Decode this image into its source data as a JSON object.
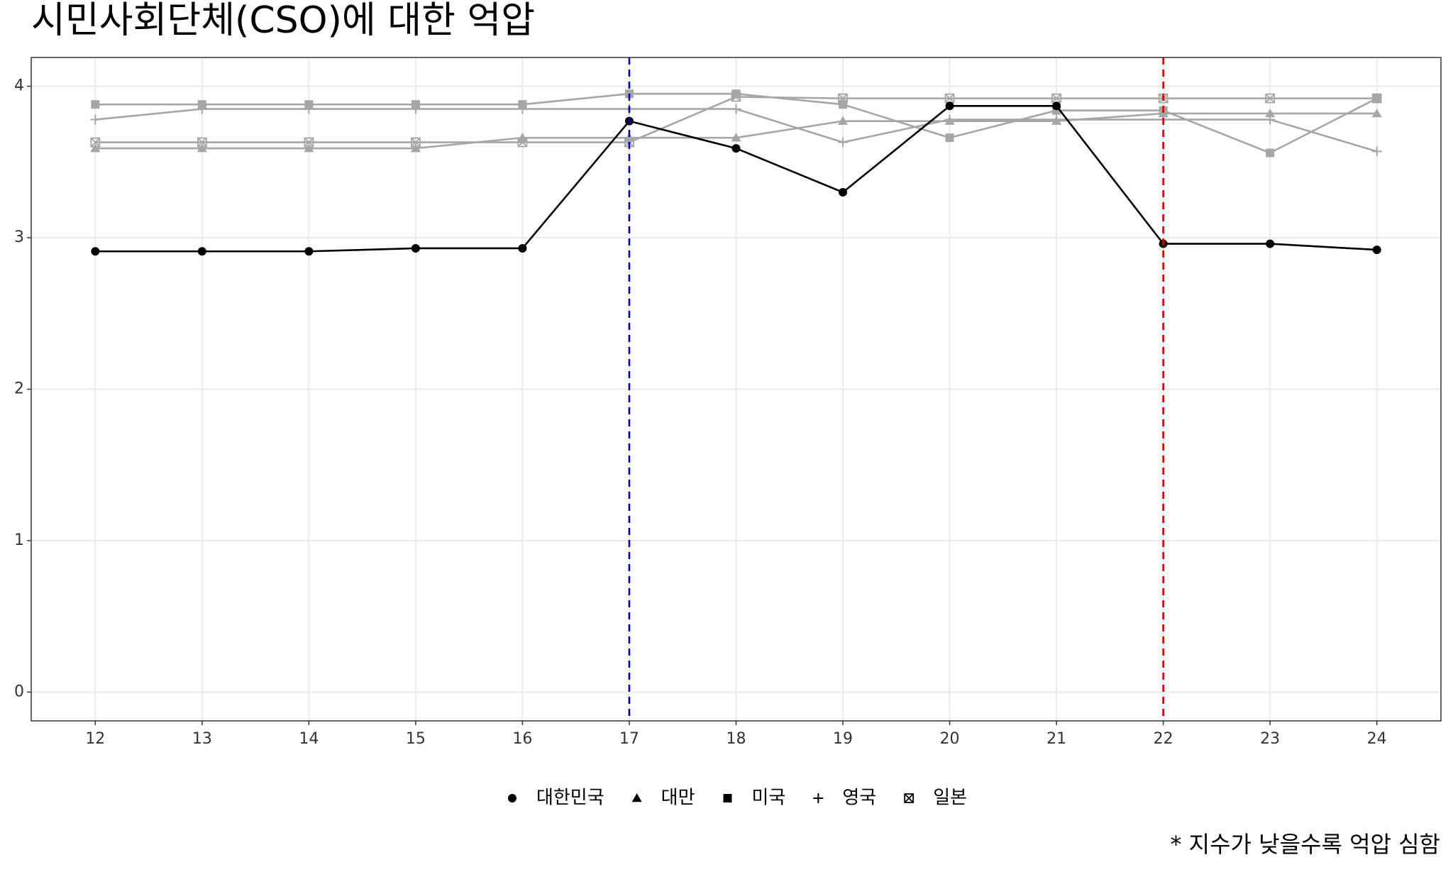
{
  "chart_data": {
    "type": "line",
    "title": "시민사회단체(CSO)에 대한 억압",
    "caption": "* 지수가 낮을수록 억압 심함",
    "x": [
      12,
      13,
      14,
      15,
      16,
      17,
      18,
      19,
      20,
      21,
      22,
      23,
      24
    ],
    "xlim": [
      11.4,
      24.6
    ],
    "xticks": [
      12,
      13,
      14,
      15,
      16,
      17,
      18,
      19,
      20,
      21,
      22,
      23,
      24
    ],
    "ylim": [
      -0.19,
      4.19
    ],
    "yticks": [
      0,
      1,
      2,
      3,
      4
    ],
    "grid": true,
    "legend": "bottom",
    "vlines": [
      {
        "x": 17,
        "color": "#0000cc"
      },
      {
        "x": 22,
        "color": "#dd0000"
      }
    ],
    "series": [
      {
        "name": "대한민국",
        "color": "#000000",
        "shape": "circle",
        "values": [
          2.91,
          2.91,
          2.91,
          2.93,
          2.93,
          3.77,
          3.59,
          3.3,
          3.87,
          3.87,
          2.96,
          2.96,
          2.92
        ]
      },
      {
        "name": "대만",
        "color": "#a6a6a6",
        "shape": "triangle",
        "values": [
          3.59,
          3.59,
          3.59,
          3.59,
          3.66,
          3.66,
          3.66,
          3.77,
          3.77,
          3.77,
          3.82,
          3.82,
          3.82
        ]
      },
      {
        "name": "미국",
        "color": "#a6a6a6",
        "shape": "square",
        "values": [
          3.88,
          3.88,
          3.88,
          3.88,
          3.88,
          3.95,
          3.95,
          3.88,
          3.66,
          3.84,
          3.84,
          3.56,
          3.92
        ]
      },
      {
        "name": "영국",
        "color": "#a6a6a6",
        "shape": "plus",
        "values": [
          3.78,
          3.85,
          3.85,
          3.85,
          3.85,
          3.85,
          3.85,
          3.63,
          3.78,
          3.78,
          3.78,
          3.78,
          3.57
        ]
      },
      {
        "name": "일본",
        "color": "#a6a6a6",
        "shape": "boxx",
        "values": [
          3.63,
          3.63,
          3.63,
          3.63,
          3.63,
          3.63,
          3.93,
          3.92,
          3.92,
          3.92,
          3.92,
          3.92,
          3.92
        ]
      }
    ]
  }
}
